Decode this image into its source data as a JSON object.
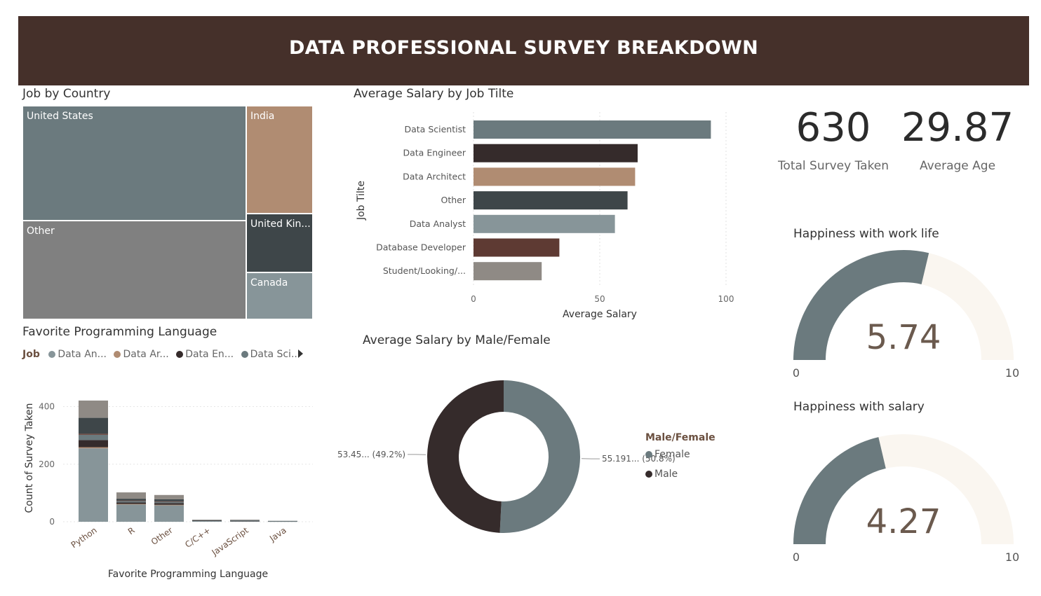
{
  "header": {
    "title": "DATA PROFESSIONAL SURVEY BREAKDOWN"
  },
  "kpis": [
    {
      "value": "630",
      "label": "Total Survey Taken"
    },
    {
      "value": "29.87",
      "label": "Average Age"
    }
  ],
  "colors": {
    "header": "#45302a",
    "slate": "#6b7a7e",
    "dark": "#352b2b",
    "tan": "#b08c72",
    "charcoal": "#3e4649",
    "light_slate": "#879599",
    "brown": "#5e3a33",
    "gray": "#8f8a85",
    "midgray": "#808080",
    "cream": "#faf6f0"
  },
  "chart_data": [
    {
      "type": "treemap",
      "title": "Job by Country",
      "items": [
        {
          "label": "United States",
          "value": 260
        },
        {
          "label": "Other",
          "value": 220
        },
        {
          "label": "India",
          "value": 75
        },
        {
          "label": "United Kin...",
          "value": 40
        },
        {
          "label": "Canada",
          "value": 35
        }
      ]
    },
    {
      "type": "bar",
      "orientation": "horizontal",
      "title": "Average Salary by Job Tilte",
      "xlabel": "Average Salary",
      "ylabel": "Job Tilte",
      "xlim": [
        0,
        100
      ],
      "xticks": [
        "0",
        "50",
        "100"
      ],
      "categories": [
        "Data Scientist",
        "Data Engineer",
        "Data Architect",
        "Other",
        "Data Analyst",
        "Database Developer",
        "Student/Looking/..."
      ],
      "values": [
        94,
        65,
        64,
        61,
        56,
        34,
        27
      ],
      "colors": [
        "#6b7a7e",
        "#352b2b",
        "#b08c72",
        "#3e4649",
        "#879599",
        "#5e3a33",
        "#8f8a85"
      ]
    },
    {
      "type": "bar",
      "stacked": true,
      "title": "Favorite Programming Language",
      "legend_title": "Job",
      "legend": [
        "Data An...",
        "Data Ar...",
        "Data En...",
        "Data Sci..."
      ],
      "legend_colors": [
        "#879599",
        "#b08c72",
        "#352b2b",
        "#6b7a7e"
      ],
      "xlabel": "Favorite Programming Language",
      "ylabel": "Count of Survey Taken",
      "ylim": [
        0,
        450
      ],
      "yticks": [
        "0",
        "200",
        "400"
      ],
      "categories": [
        "Python",
        "R",
        "Other",
        "C/C++",
        "JavaScript",
        "Java"
      ],
      "series": [
        {
          "values": [
            255,
            60,
            57,
            3,
            2,
            1
          ],
          "color": "#879599"
        },
        {
          "values": [
            4,
            2,
            2,
            0,
            0,
            0
          ],
          "color": "#b08c72"
        },
        {
          "values": [
            25,
            5,
            6,
            1,
            1,
            0
          ],
          "color": "#352b2b"
        },
        {
          "values": [
            18,
            5,
            4,
            1,
            1,
            1
          ],
          "color": "#6b7a7e"
        },
        {
          "values": [
            4,
            2,
            2,
            0,
            0,
            0
          ],
          "color": "#5e3a33"
        },
        {
          "values": [
            55,
            6,
            7,
            1,
            2,
            1
          ],
          "color": "#3e4649"
        },
        {
          "values": [
            60,
            22,
            15,
            1,
            1,
            0
          ],
          "color": "#8f8a85"
        }
      ]
    },
    {
      "type": "pie",
      "donut": true,
      "title": "Average Salary by Male/Female",
      "legend_title": "Male/Female",
      "labels": [
        "Female",
        "Male"
      ],
      "values": [
        55.191,
        53.45
      ],
      "percents": [
        50.8,
        49.2
      ],
      "data_labels": [
        "55.191... (50.8%)",
        "53.45... (49.2%)"
      ],
      "colors": [
        "#6b7a7e",
        "#352b2b"
      ]
    },
    {
      "type": "gauge",
      "title": "Happiness with work life",
      "value": 5.74,
      "value_label": "5.74",
      "min": 0,
      "max": 10,
      "min_label": "0",
      "max_label": "10"
    },
    {
      "type": "gauge",
      "title": "Happiness with salary",
      "value": 4.27,
      "value_label": "4.27",
      "min": 0,
      "max": 10,
      "min_label": "0",
      "max_label": "10"
    }
  ]
}
